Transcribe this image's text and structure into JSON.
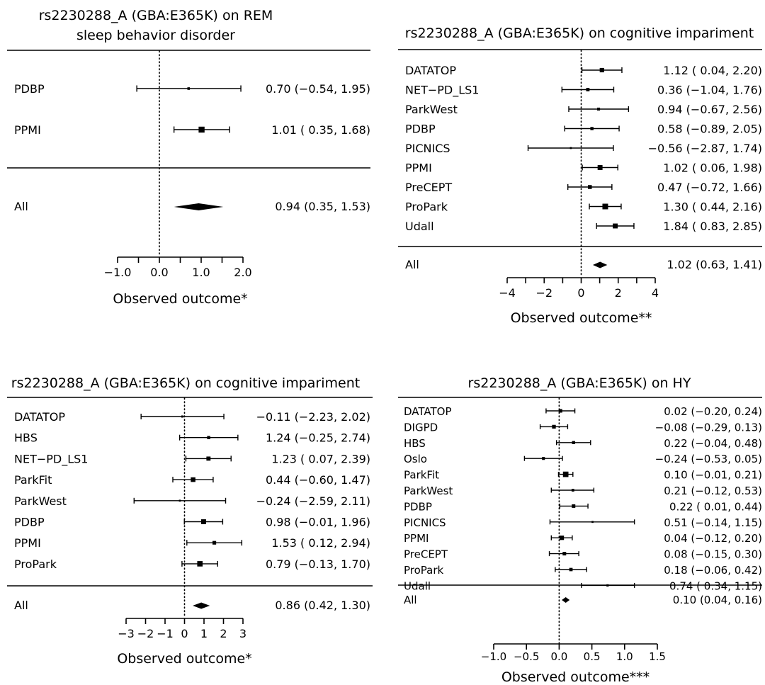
{
  "chart_data": [
    {
      "type": "forest",
      "title_lines": [
        "rs2230288_A (GBA:E365K) on REM",
        "sleep behavior disorder"
      ],
      "xlabel": "Observed outcome*",
      "xlim": [
        -1.0,
        2.0
      ],
      "ticks": [
        -1.0,
        -0.5,
        0.0,
        0.5,
        1.0,
        1.5,
        2.0
      ],
      "tick_labels": [
        "−1.0",
        "",
        "0.0",
        "",
        "1.0",
        "",
        "2.0"
      ],
      "reference_line": 0,
      "studies": [
        {
          "name": "PDBP",
          "est": 0.7,
          "lo": -0.54,
          "hi": 1.95,
          "weight": 0.2,
          "text": "0.70 (−0.54, 1.95)"
        },
        {
          "name": "PPMI",
          "est": 1.01,
          "lo": 0.35,
          "hi": 1.68,
          "weight": 0.8,
          "text": "1.01 ( 0.35, 1.68)"
        }
      ],
      "summary": {
        "name": "All",
        "est": 0.94,
        "lo": 0.35,
        "hi": 1.53,
        "text": "0.94 (0.35, 1.53)"
      }
    },
    {
      "type": "forest",
      "title_lines": [
        "rs2230288_A (GBA:E365K) on cognitive impariment"
      ],
      "xlabel": "Observed outcome**",
      "xlim": [
        -4,
        4
      ],
      "ticks": [
        -4,
        -3,
        -2,
        -1,
        0,
        1,
        2,
        3,
        4
      ],
      "tick_labels": [
        "−4",
        "",
        "−2",
        "",
        "0",
        "",
        "2",
        "",
        "4"
      ],
      "reference_line": 0,
      "studies": [
        {
          "name": "DATATOP",
          "est": 1.12,
          "lo": 0.04,
          "hi": 2.2,
          "weight": 0.6,
          "text": "1.12 ( 0.04, 2.20)"
        },
        {
          "name": "NET−PD_LS1",
          "est": 0.36,
          "lo": -1.04,
          "hi": 1.76,
          "weight": 0.4,
          "text": "0.36 (−1.04, 1.76)"
        },
        {
          "name": "ParkWest",
          "est": 0.94,
          "lo": -0.67,
          "hi": 2.56,
          "weight": 0.3,
          "text": "0.94 (−0.67, 2.56)"
        },
        {
          "name": "PDBP",
          "est": 0.58,
          "lo": -0.89,
          "hi": 2.05,
          "weight": 0.35,
          "text": "0.58 (−0.89, 2.05)"
        },
        {
          "name": "PICNICS",
          "est": -0.56,
          "lo": -2.87,
          "hi": 1.74,
          "weight": 0.1,
          "text": "−0.56 (−2.87, 1.74)"
        },
        {
          "name": "PPMI",
          "est": 1.02,
          "lo": 0.06,
          "hi": 1.98,
          "weight": 0.7,
          "text": "1.02 ( 0.06, 1.98)"
        },
        {
          "name": "PreCEPT",
          "est": 0.47,
          "lo": -0.72,
          "hi": 1.66,
          "weight": 0.5,
          "text": "0.47 (−0.72, 1.66)"
        },
        {
          "name": "ProPark",
          "est": 1.3,
          "lo": 0.44,
          "hi": 2.16,
          "weight": 0.85,
          "text": "1.30 ( 0.44, 2.16)"
        },
        {
          "name": "Udall",
          "est": 1.84,
          "lo": 0.83,
          "hi": 2.85,
          "weight": 0.7,
          "text": "1.84 ( 0.83, 2.85)"
        }
      ],
      "summary": {
        "name": "All",
        "est": 1.02,
        "lo": 0.63,
        "hi": 1.41,
        "text": "1.02 (0.63, 1.41)"
      }
    },
    {
      "type": "forest",
      "title_lines": [
        "rs2230288_A (GBA:E365K) on cognitive impariment"
      ],
      "xlabel": "Observed outcome*",
      "xlim": [
        -3,
        3
      ],
      "ticks": [
        -3,
        -2,
        -1,
        0,
        1,
        2,
        3
      ],
      "tick_labels": [
        "−3",
        "−2",
        "−1",
        "0",
        "1",
        "2",
        "3"
      ],
      "reference_line": 0,
      "studies": [
        {
          "name": "DATATOP",
          "est": -0.11,
          "lo": -2.23,
          "hi": 2.02,
          "weight": 0.15,
          "text": "−0.11 (−2.23, 2.02)"
        },
        {
          "name": "HBS",
          "est": 1.24,
          "lo": -0.25,
          "hi": 2.74,
          "weight": 0.35,
          "text": "1.24 (−0.25, 2.74)"
        },
        {
          "name": "NET−PD_LS1",
          "est": 1.23,
          "lo": 0.07,
          "hi": 2.39,
          "weight": 0.55,
          "text": "1.23 ( 0.07, 2.39)"
        },
        {
          "name": "ParkFit",
          "est": 0.44,
          "lo": -0.6,
          "hi": 1.47,
          "weight": 0.65,
          "text": "0.44 (−0.60, 1.47)"
        },
        {
          "name": "ParkWest",
          "est": -0.24,
          "lo": -2.59,
          "hi": 2.11,
          "weight": 0.1,
          "text": "−0.24 (−2.59, 2.11)"
        },
        {
          "name": "PDBP",
          "est": 0.98,
          "lo": -0.01,
          "hi": 1.96,
          "weight": 0.7,
          "text": "0.98 (−0.01, 1.96)"
        },
        {
          "name": "PPMI",
          "est": 1.53,
          "lo": 0.12,
          "hi": 2.94,
          "weight": 0.45,
          "text": "1.53 ( 0.12, 2.94)"
        },
        {
          "name": "ProPark",
          "est": 0.79,
          "lo": -0.13,
          "hi": 1.7,
          "weight": 0.8,
          "text": "0.79 (−0.13, 1.70)"
        }
      ],
      "summary": {
        "name": "All",
        "est": 0.86,
        "lo": 0.42,
        "hi": 1.3,
        "text": "0.86 (0.42, 1.30)"
      }
    },
    {
      "type": "forest",
      "title_lines": [
        "rs2230288_A (GBA:E365K) on HY"
      ],
      "xlabel": "Observed outcome***",
      "xlim": [
        -1.0,
        1.5
      ],
      "ticks": [
        -1.0,
        -0.5,
        0.0,
        0.5,
        1.0,
        1.5
      ],
      "tick_labels": [
        "−1.0",
        "−0.5",
        "0.0",
        "0.5",
        "1.0",
        "1.5"
      ],
      "reference_line": 0,
      "studies": [
        {
          "name": "DATATOP",
          "est": 0.02,
          "lo": -0.2,
          "hi": 0.24,
          "weight": 0.5,
          "text": "0.02 (−0.20, 0.24)"
        },
        {
          "name": "DIGPD",
          "est": -0.08,
          "lo": -0.29,
          "hi": 0.13,
          "weight": 0.55,
          "text": "−0.08 (−0.29, 0.13)"
        },
        {
          "name": "HBS",
          "est": 0.22,
          "lo": -0.04,
          "hi": 0.48,
          "weight": 0.4,
          "text": "0.22 (−0.04, 0.48)"
        },
        {
          "name": "Oslo",
          "est": -0.24,
          "lo": -0.53,
          "hi": 0.05,
          "weight": 0.35,
          "text": "−0.24 (−0.53, 0.05)"
        },
        {
          "name": "ParkFit",
          "est": 0.1,
          "lo": -0.01,
          "hi": 0.21,
          "weight": 0.95,
          "text": "0.10 (−0.01, 0.21)"
        },
        {
          "name": "ParkWest",
          "est": 0.21,
          "lo": -0.12,
          "hi": 0.53,
          "weight": 0.3,
          "text": "0.21 (−0.12, 0.53)"
        },
        {
          "name": "PDBP",
          "est": 0.22,
          "lo": 0.01,
          "hi": 0.44,
          "weight": 0.5,
          "text": "0.22 ( 0.01, 0.44)"
        },
        {
          "name": "PICNICS",
          "est": 0.51,
          "lo": -0.14,
          "hi": 1.15,
          "weight": 0.12,
          "text": "0.51 (−0.14, 1.15)"
        },
        {
          "name": "PPMI",
          "est": 0.04,
          "lo": -0.12,
          "hi": 0.2,
          "weight": 0.7,
          "text": "0.04 (−0.12, 0.20)"
        },
        {
          "name": "PreCEPT",
          "est": 0.08,
          "lo": -0.15,
          "hi": 0.3,
          "weight": 0.5,
          "text": "0.08 (−0.15, 0.30)"
        },
        {
          "name": "ProPark",
          "est": 0.18,
          "lo": -0.06,
          "hi": 0.42,
          "weight": 0.45,
          "text": "0.18 (−0.06, 0.42)"
        },
        {
          "name": "Udall",
          "est": 0.74,
          "lo": 0.34,
          "hi": 1.15,
          "weight": 0.2,
          "text": "0.74 ( 0.34, 1.15)"
        }
      ],
      "summary": {
        "name": "All",
        "est": 0.1,
        "lo": 0.04,
        "hi": 0.16,
        "text": "0.10 (0.04, 0.16)"
      }
    }
  ]
}
